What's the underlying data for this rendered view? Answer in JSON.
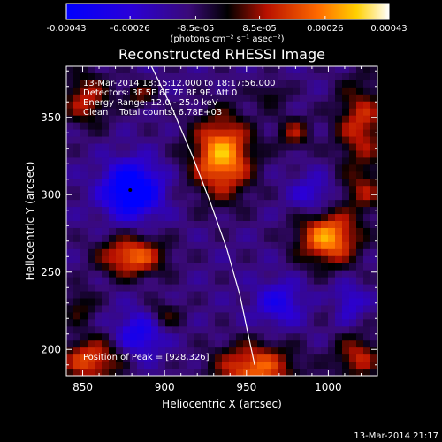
{
  "chart_data": {
    "type": "heatmap",
    "title": "Reconstructed RHESSI Image",
    "xlabel": "Heliocentric X (arcsec)",
    "ylabel": "Heliocentric Y (arcsec)",
    "xlim": [
      840,
      1030
    ],
    "ylim": [
      183,
      383
    ],
    "x_ticks": [
      850,
      900,
      950,
      1000
    ],
    "y_ticks": [
      200,
      250,
      300,
      350
    ],
    "colorbar": {
      "min": -0.00043,
      "max": 0.00043,
      "ticks": [
        "-0.00043",
        "-0.00026",
        "-8.5e-05",
        "8.5e-05",
        "0.00026",
        "0.00043"
      ],
      "tick_values": [
        -0.00043,
        -0.00026,
        -8.5e-05,
        8.5e-05,
        0.00026,
        0.00043
      ],
      "unit_label": "(photons cm⁻² s⁻¹ asec⁻²)",
      "colormap": "blue-purple-black-red-yellow-white"
    },
    "annotations": [
      "13-Mar-2014 18:15:12.000 to 18:17:56.000",
      "Detectors: 3F 5F 6F 7F 8F 9F, Att 0",
      "Energy Range: 12.0 - 25.0 keV",
      "Clean    Total counts: 6.78E+03"
    ],
    "peak_label": "Position of Peak = [928,326]",
    "peak_position": [
      928,
      326
    ],
    "min_marker": [
      879,
      303
    ],
    "limb_curve": [
      [
        892,
        383
      ],
      [
        905,
        355
      ],
      [
        917,
        325
      ],
      [
        928,
        295
      ],
      [
        938,
        265
      ],
      [
        946,
        235
      ],
      [
        951,
        210
      ],
      [
        955,
        190
      ]
    ],
    "sources": [
      {
        "x": 935,
        "y": 325,
        "amp": 1.0,
        "sx": 13,
        "sy": 18
      },
      {
        "x": 1000,
        "y": 272,
        "amp": 0.95,
        "sx": 13,
        "sy": 12
      },
      {
        "x": 880,
        "y": 260,
        "amp": 0.8,
        "sx": 14,
        "sy": 9
      },
      {
        "x": 955,
        "y": 188,
        "amp": 0.8,
        "sx": 17,
        "sy": 11
      },
      {
        "x": 855,
        "y": 193,
        "amp": 0.7,
        "sx": 13,
        "sy": 10
      },
      {
        "x": 1020,
        "y": 345,
        "amp": 0.6,
        "sx": 11,
        "sy": 20
      },
      {
        "x": 1018,
        "y": 195,
        "amp": 0.55,
        "sx": 10,
        "sy": 10
      },
      {
        "x": 852,
        "y": 362,
        "amp": 0.55,
        "sx": 10,
        "sy": 12
      },
      {
        "x": 885,
        "y": 365,
        "amp": 0.4,
        "sx": 7,
        "sy": 6
      },
      {
        "x": 979,
        "y": 340,
        "amp": 0.45,
        "sx": 7,
        "sy": 8
      },
      {
        "x": 1022,
        "y": 302,
        "amp": 0.4,
        "sx": 9,
        "sy": 10
      },
      {
        "x": 900,
        "y": 222,
        "amp": 0.35,
        "sx": 8,
        "sy": 7
      },
      {
        "x": 848,
        "y": 228,
        "amp": 0.35,
        "sx": 7,
        "sy": 8
      },
      {
        "x": 1003,
        "y": 228,
        "amp": 0.3,
        "sx": 6,
        "sy": 6
      },
      {
        "x": 965,
        "y": 365,
        "amp": 0.3,
        "sx": 7,
        "sy": 6
      },
      {
        "x": 880,
        "y": 303,
        "amp": -1.0,
        "sx": 12,
        "sy": 12
      },
      {
        "x": 885,
        "y": 210,
        "amp": -0.55,
        "sx": 10,
        "sy": 10
      },
      {
        "x": 970,
        "y": 230,
        "amp": -0.45,
        "sx": 10,
        "sy": 10
      },
      {
        "x": 990,
        "y": 300,
        "amp": -0.35,
        "sx": 9,
        "sy": 9
      },
      {
        "x": 1010,
        "y": 230,
        "amp": -0.45,
        "sx": 8,
        "sy": 8
      }
    ]
  },
  "footer": {
    "timestamp": "13-Mar-2014 21:17"
  }
}
